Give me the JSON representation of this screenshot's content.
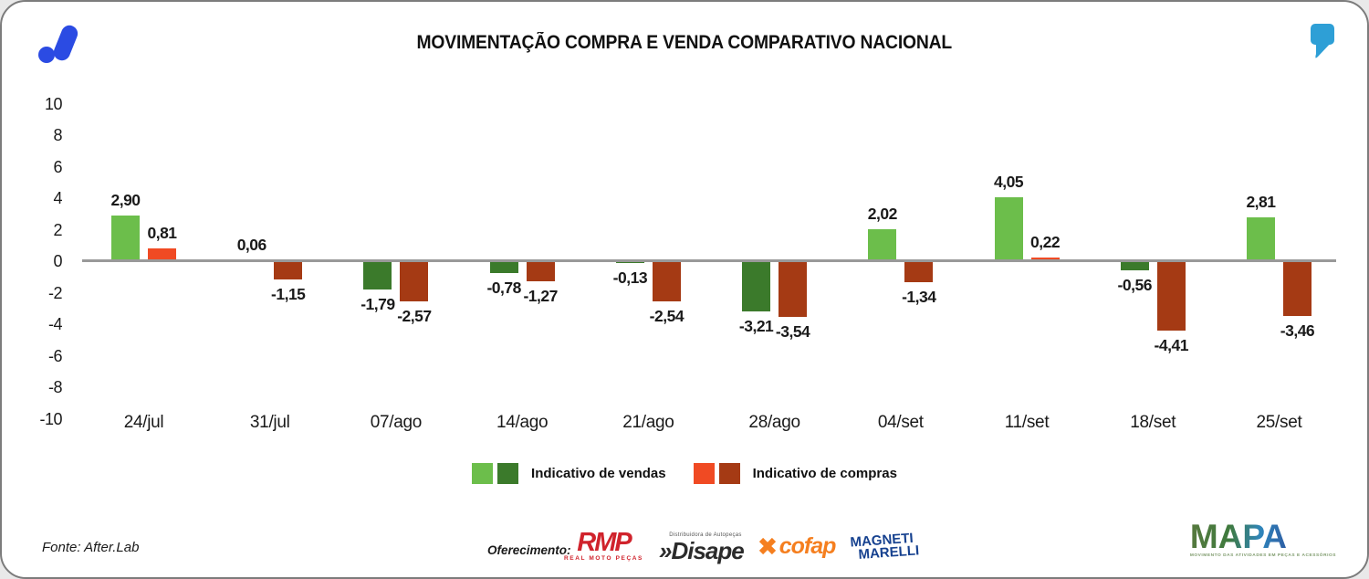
{
  "header": {
    "title": "MOVIMENTAÇÃO COMPRA E VENDA COMPARATIVO NACIONAL"
  },
  "colors": {
    "vendas_positive": "#6CBE4B",
    "vendas_negative": "#3B7A2B",
    "compras_positive": "#F04A23",
    "compras_negative": "#A53A14",
    "zero_line": "#999999",
    "header_logo_blue": "#2B4BE3",
    "quote_icon_blue": "#2E9FD6"
  },
  "chart_data": {
    "type": "bar",
    "title": "MOVIMENTAÇÃO COMPRA E VENDA COMPARATIVO NACIONAL",
    "categories": [
      "24/jul",
      "31/jul",
      "07/ago",
      "14/ago",
      "21/ago",
      "28/ago",
      "04/set",
      "11/set",
      "18/set",
      "25/set"
    ],
    "series": [
      {
        "name": "Indicativo de vendas",
        "values": [
          2.9,
          0.06,
          -1.79,
          -0.78,
          -0.13,
          -3.21,
          2.02,
          4.05,
          -0.56,
          2.81
        ],
        "labels": [
          "2,90",
          "0,06",
          "-1,79",
          "-0,78",
          "-0,13",
          "-3,21",
          "2,02",
          "4,05",
          "-0,56",
          "2,81"
        ]
      },
      {
        "name": "Indicativo de compras",
        "values": [
          0.81,
          -1.15,
          -2.57,
          -1.27,
          -2.54,
          -3.54,
          -1.34,
          0.22,
          -4.41,
          -3.46
        ],
        "labels": [
          "0,81",
          "-1,15",
          "-2,57",
          "-1,27",
          "-2,54",
          "-3,54",
          "-1,34",
          "0,22",
          "-4,41",
          "-3,46"
        ]
      }
    ],
    "xlabel": "",
    "ylabel": "",
    "ylim": [
      -10,
      10
    ],
    "yticks": [
      10,
      8,
      6,
      4,
      2,
      0,
      -2,
      -4,
      -6,
      -8,
      -10
    ],
    "grid": false,
    "legend_position": "bottom"
  },
  "footer": {
    "fonte": "Fonte: After.Lab",
    "oferecimento": "Oferecimento:",
    "sponsors": {
      "rmp": {
        "text": "RMP",
        "subtext": "REAL MOTO PEÇAS"
      },
      "disape": {
        "prefix": "»",
        "text": "Disape",
        "subtext": "Distribuidora de Autopeças"
      },
      "cofap": {
        "text": "cofap"
      },
      "magneti": {
        "line1": "MAGNETI",
        "line2": "MARELLI"
      }
    },
    "mapa": {
      "text": "MAPA",
      "subtext": "MOVIMENTO DAS ATIVIDADES EM PEÇAS E ACESSÓRIOS"
    }
  }
}
